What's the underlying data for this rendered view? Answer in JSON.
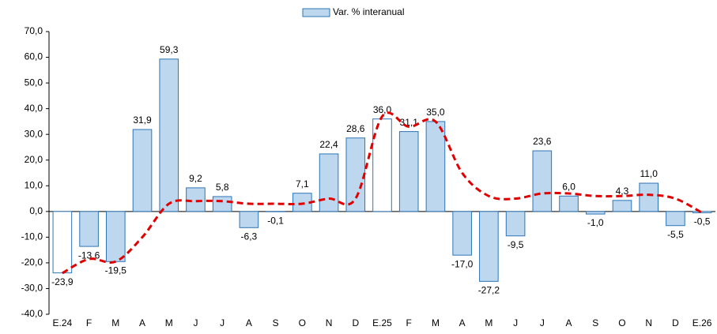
{
  "chart_data": {
    "type": "bar",
    "categories": [
      "E.24",
      "F",
      "M",
      "A",
      "M",
      "J",
      "J",
      "A",
      "S",
      "O",
      "N",
      "D",
      "E.25",
      "F",
      "M",
      "A",
      "M",
      "J",
      "J",
      "A",
      "S",
      "O",
      "N",
      "D",
      "E.26"
    ],
    "series": [
      {
        "name": "Var. % interanual",
        "color": "#bdd7ee",
        "colors": [
          "#ffffff",
          "#bdd7ee",
          "#bdd7ee",
          "#bdd7ee",
          "#bdd7ee",
          "#bdd7ee",
          "#bdd7ee",
          "#bdd7ee",
          "#bdd7ee",
          "#bdd7ee",
          "#bdd7ee",
          "#bdd7ee",
          "#ffffff",
          "#bdd7ee",
          "#bdd7ee",
          "#bdd7ee",
          "#bdd7ee",
          "#bdd7ee",
          "#bdd7ee",
          "#bdd7ee",
          "#bdd7ee",
          "#bdd7ee",
          "#bdd7ee",
          "#bdd7ee",
          "#ffffff"
        ],
        "values": [
          -23.9,
          -13.6,
          -19.5,
          31.9,
          59.3,
          9.2,
          5.8,
          -6.3,
          -0.1,
          7.1,
          22.4,
          28.6,
          36.0,
          31.1,
          35.0,
          -17.0,
          -27.2,
          -9.5,
          23.6,
          6.0,
          -1.0,
          4.3,
          11.0,
          -5.5,
          -0.5
        ],
        "value_labels": [
          "-23,9",
          "-13,6",
          "-19,5",
          "31,9",
          "59,3",
          "9,2",
          "5,8",
          "-6,3",
          "-0,1",
          "7,1",
          "22,4",
          "28,6",
          "36,0",
          "31,1",
          "35,0",
          "-17,0",
          "-27,2",
          "-9,5",
          "23,6",
          "6,0",
          "-1,0",
          "4,3",
          "11,0",
          "-5,5",
          "-0,5"
        ]
      },
      {
        "type": "line",
        "color": "#e00000",
        "dashed": true,
        "values": [
          -24,
          -18.5,
          -19.5,
          -10,
          3,
          4,
          4,
          3,
          3,
          3,
          5,
          5,
          37,
          33,
          35,
          15,
          6,
          5,
          7,
          7,
          6,
          6,
          6.5,
          5,
          -0.5
        ]
      }
    ],
    "ylim": [
      -40,
      70
    ],
    "yticks": [
      {
        "value": -40,
        "label": "-40,0"
      },
      {
        "value": -30,
        "label": "-30,0"
      },
      {
        "value": -20,
        "label": "-20,0"
      },
      {
        "value": -10,
        "label": "-10,0"
      },
      {
        "value": 0,
        "label": "0,0"
      },
      {
        "value": 10,
        "label": "10,0"
      },
      {
        "value": 20,
        "label": "20,0"
      },
      {
        "value": 30,
        "label": "30,0"
      },
      {
        "value": 40,
        "label": "40,0"
      },
      {
        "value": 50,
        "label": "50,0"
      },
      {
        "value": 60,
        "label": "60,0"
      },
      {
        "value": 70,
        "label": "70,0"
      }
    ],
    "grid": false
  }
}
